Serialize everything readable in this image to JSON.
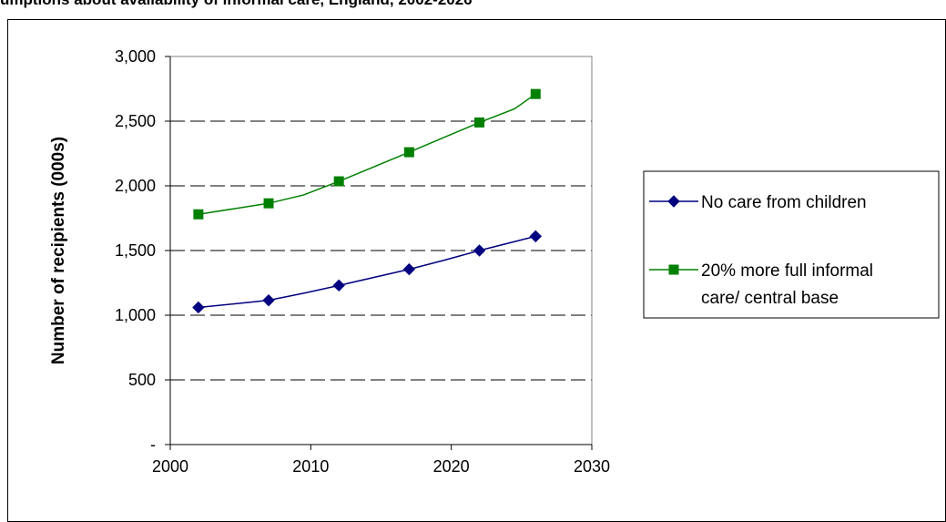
{
  "chart_data": {
    "type": "line",
    "title": "umptions about availability of informal care, England, 2002-2026",
    "xlabel": "",
    "ylabel": "Number of recipients (000s)",
    "xlim": [
      2000,
      2030
    ],
    "ylim": [
      0,
      3000
    ],
    "x_ticks": [
      "2000",
      "2010",
      "2020",
      "2030"
    ],
    "y_ticks": [
      "-",
      "500",
      "1,000",
      "1,500",
      "2,000",
      "2,500",
      "3,000"
    ],
    "grid": "horizontal dashed",
    "legend_position": "right",
    "series": [
      {
        "name": "No care from children",
        "color": "#000080",
        "marker": "diamond",
        "x": [
          2002,
          2007,
          2012,
          2017,
          2022,
          2026
        ],
        "values": [
          1060,
          1115,
          1230,
          1355,
          1500,
          1610
        ],
        "curve_x": [
          2002,
          2007,
          2009.5,
          2012,
          2017,
          2019.5,
          2022,
          2026
        ],
        "curve_y": [
          1060,
          1115,
          1170,
          1230,
          1355,
          1425,
          1500,
          1610
        ]
      },
      {
        "name": "20% more full informal care/ central base",
        "legend_lines": [
          "20% more full informal",
          "care/ central base"
        ],
        "color": "#008000",
        "marker": "square",
        "x": [
          2002,
          2007,
          2012,
          2017,
          2022,
          2026
        ],
        "values": [
          1780,
          1865,
          2035,
          2260,
          2490,
          2710
        ],
        "curve_x": [
          2002,
          2007,
          2009.5,
          2012,
          2017,
          2022,
          2024.5,
          2026
        ],
        "curve_y": [
          1780,
          1865,
          1930,
          2035,
          2260,
          2490,
          2595,
          2710
        ]
      }
    ]
  }
}
